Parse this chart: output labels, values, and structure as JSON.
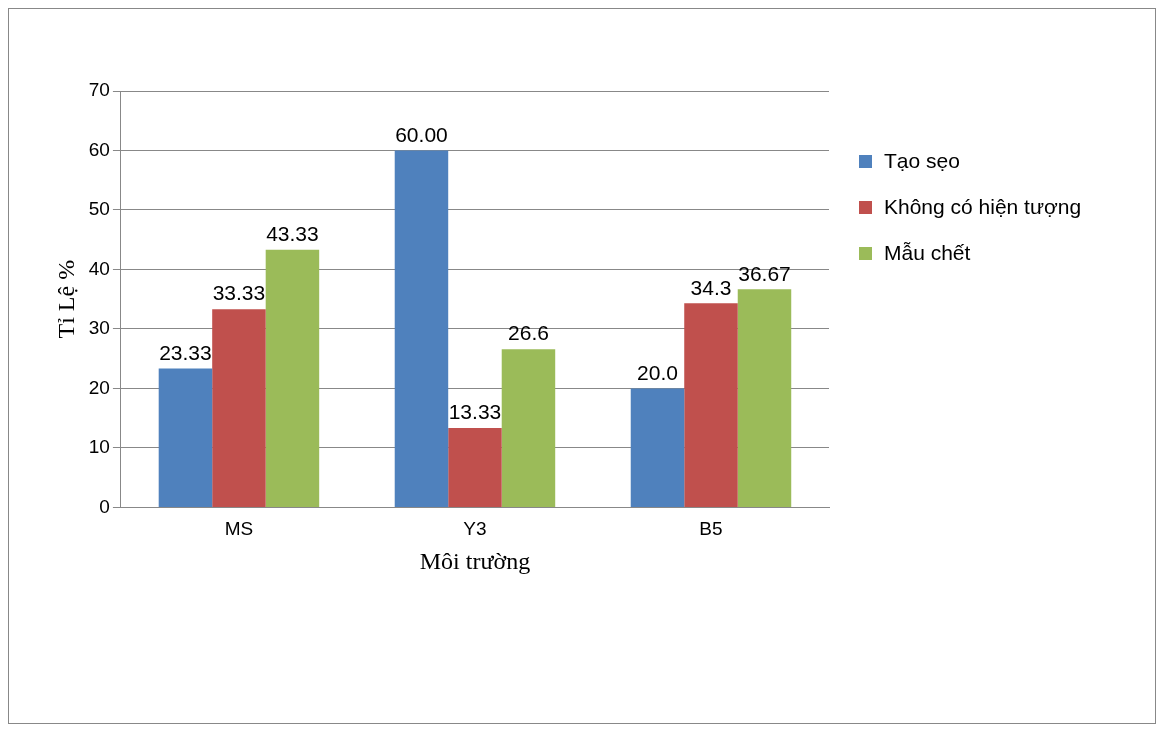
{
  "chart_data": {
    "type": "bar",
    "xlabel": "Môi trường",
    "ylabel": "Tỉ Lệ %",
    "categories": [
      "MS",
      "Y3",
      "B5"
    ],
    "series": [
      {
        "name": "Tạo sẹo",
        "color": "#4f81bd",
        "values": [
          23.33,
          60,
          20
        ],
        "value_labels": [
          "23.33",
          "60.00",
          "20.0"
        ]
      },
      {
        "name": "Không có hiện tượng",
        "color": "#c0504d",
        "values": [
          33.33,
          13.33,
          34.3
        ],
        "value_labels": [
          "33.33",
          "13.33",
          "34.3"
        ]
      },
      {
        "name": "Mẫu chết",
        "color": "#9bbb59",
        "values": [
          43.33,
          26.6,
          36.67
        ],
        "value_labels": [
          "43.33",
          "26.6",
          "36.67"
        ]
      }
    ],
    "ylim": [
      0,
      70
    ],
    "yticks": [
      0,
      10,
      20,
      30,
      40,
      50,
      60,
      70
    ],
    "grid": "y",
    "legend": "right"
  }
}
